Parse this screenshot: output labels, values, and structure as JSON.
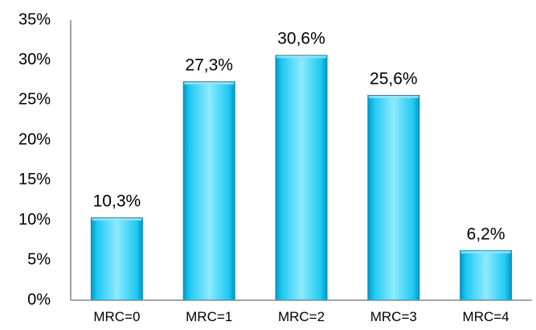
{
  "chart_data": {
    "type": "bar",
    "categories": [
      "MRC=0",
      "MRC=1",
      "MRC=2",
      "MRC=3",
      "MRC=4"
    ],
    "values": [
      10.3,
      27.3,
      30.6,
      25.6,
      6.2
    ],
    "value_labels": [
      "10,3%",
      "27,3%",
      "30,6%",
      "25,6%",
      "6,2%"
    ],
    "title": "",
    "xlabel": "",
    "ylabel": "",
    "ylim": [
      0,
      35
    ],
    "yticks": [
      0,
      5,
      10,
      15,
      20,
      25,
      30,
      35
    ],
    "ytick_labels": [
      "0%",
      "5%",
      "10%",
      "15%",
      "20%",
      "25%",
      "30%",
      "35%"
    ],
    "grid": false,
    "legend": "none",
    "colors": {
      "bar_fill": "#1EC9F2",
      "bar_light": "#8FEAFF",
      "bar_dark": "#0497C6",
      "bar_stroke": "#0A8FB8",
      "axis": "#868686",
      "text": "#000000"
    }
  }
}
